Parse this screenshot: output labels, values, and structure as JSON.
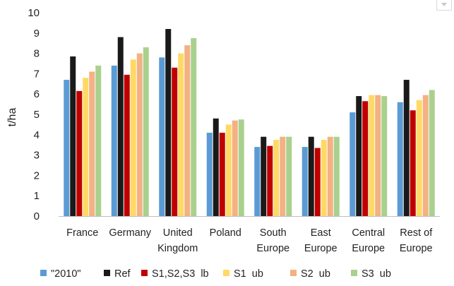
{
  "chart_data": {
    "type": "bar",
    "title": "",
    "xlabel": "",
    "ylabel": "t/ha",
    "ylim": [
      0,
      10
    ],
    "yticks": [
      0,
      1,
      2,
      3,
      4,
      5,
      6,
      7,
      8,
      9,
      10
    ],
    "grid": false,
    "legend_position": "bottom",
    "categories": [
      [
        "France"
      ],
      [
        "Germany"
      ],
      [
        "United",
        "Kingdom"
      ],
      [
        "Poland"
      ],
      [
        "South",
        "Europe"
      ],
      [
        "East",
        "Europe"
      ],
      [
        "Central",
        "Europe"
      ],
      [
        "Rest of",
        "Europe"
      ]
    ],
    "series": [
      {
        "name": "\"2010\"",
        "color": "#5B9BD5",
        "values": [
          6.7,
          7.4,
          7.8,
          4.1,
          3.4,
          3.4,
          5.1,
          5.6
        ]
      },
      {
        "name": "Ref",
        "color": "#1A1A1A",
        "values": [
          7.85,
          8.8,
          9.2,
          4.8,
          3.9,
          3.9,
          5.9,
          6.7
        ]
      },
      {
        "name": "S1,S2,S3  lb",
        "color": "#C00000",
        "values": [
          6.15,
          6.95,
          7.3,
          4.1,
          3.45,
          3.35,
          5.65,
          5.2
        ]
      },
      {
        "name": "S1  ub",
        "color": "#FFD966",
        "values": [
          6.8,
          7.7,
          8.0,
          4.5,
          3.75,
          3.75,
          5.95,
          5.7
        ]
      },
      {
        "name": "S2  ub",
        "color": "#F4B183",
        "values": [
          7.1,
          8.0,
          8.4,
          4.7,
          3.9,
          3.9,
          5.95,
          5.95
        ]
      },
      {
        "name": "S3  ub",
        "color": "#A9D18E",
        "values": [
          7.4,
          8.3,
          8.75,
          4.75,
          3.9,
          3.9,
          5.9,
          6.2
        ]
      }
    ]
  }
}
